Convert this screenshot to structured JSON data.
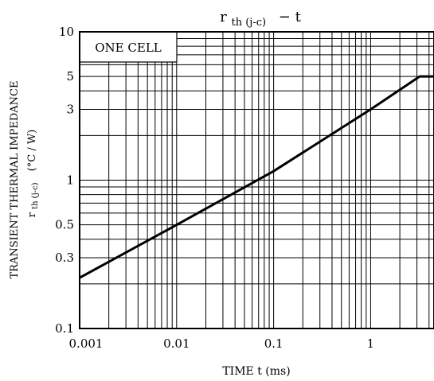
{
  "chart_data": {
    "type": "line",
    "title": {
      "base": "r",
      "sub": "th (j-c)",
      "tail": "−  t"
    },
    "xlabel": "TIME   t   (ms)",
    "ylabel": {
      "line1": "TRANSIENT THERMAL IMPEDANCE",
      "line2_base": "r",
      "line2_sub": "th (j-c)",
      "line2_unit": "(°C / W)"
    },
    "x_scale": "log",
    "y_scale": "log",
    "xlim": [
      0.001,
      4.5
    ],
    "ylim": [
      0.1,
      10
    ],
    "x_ticks": [
      {
        "value": 0.001,
        "label": "0.001"
      },
      {
        "value": 0.01,
        "label": "0.01"
      },
      {
        "value": 0.1,
        "label": "0.1"
      },
      {
        "value": 1,
        "label": "1"
      }
    ],
    "y_ticks": [
      {
        "value": 10,
        "label": "10"
      },
      {
        "value": 5,
        "label": "5"
      },
      {
        "value": 3,
        "label": "3"
      },
      {
        "value": 1,
        "label": "1"
      },
      {
        "value": 0.5,
        "label": "0.5"
      },
      {
        "value": 0.3,
        "label": "0.3"
      },
      {
        "value": 0.1,
        "label": "0.1"
      }
    ],
    "grid": true,
    "annotation": "ONE CELL",
    "series": [
      {
        "x": [
          0.001,
          0.01,
          0.1,
          1,
          3.2,
          4.5
        ],
        "y": [
          0.22,
          0.5,
          1.15,
          3.0,
          5.0,
          5.0
        ]
      }
    ]
  }
}
